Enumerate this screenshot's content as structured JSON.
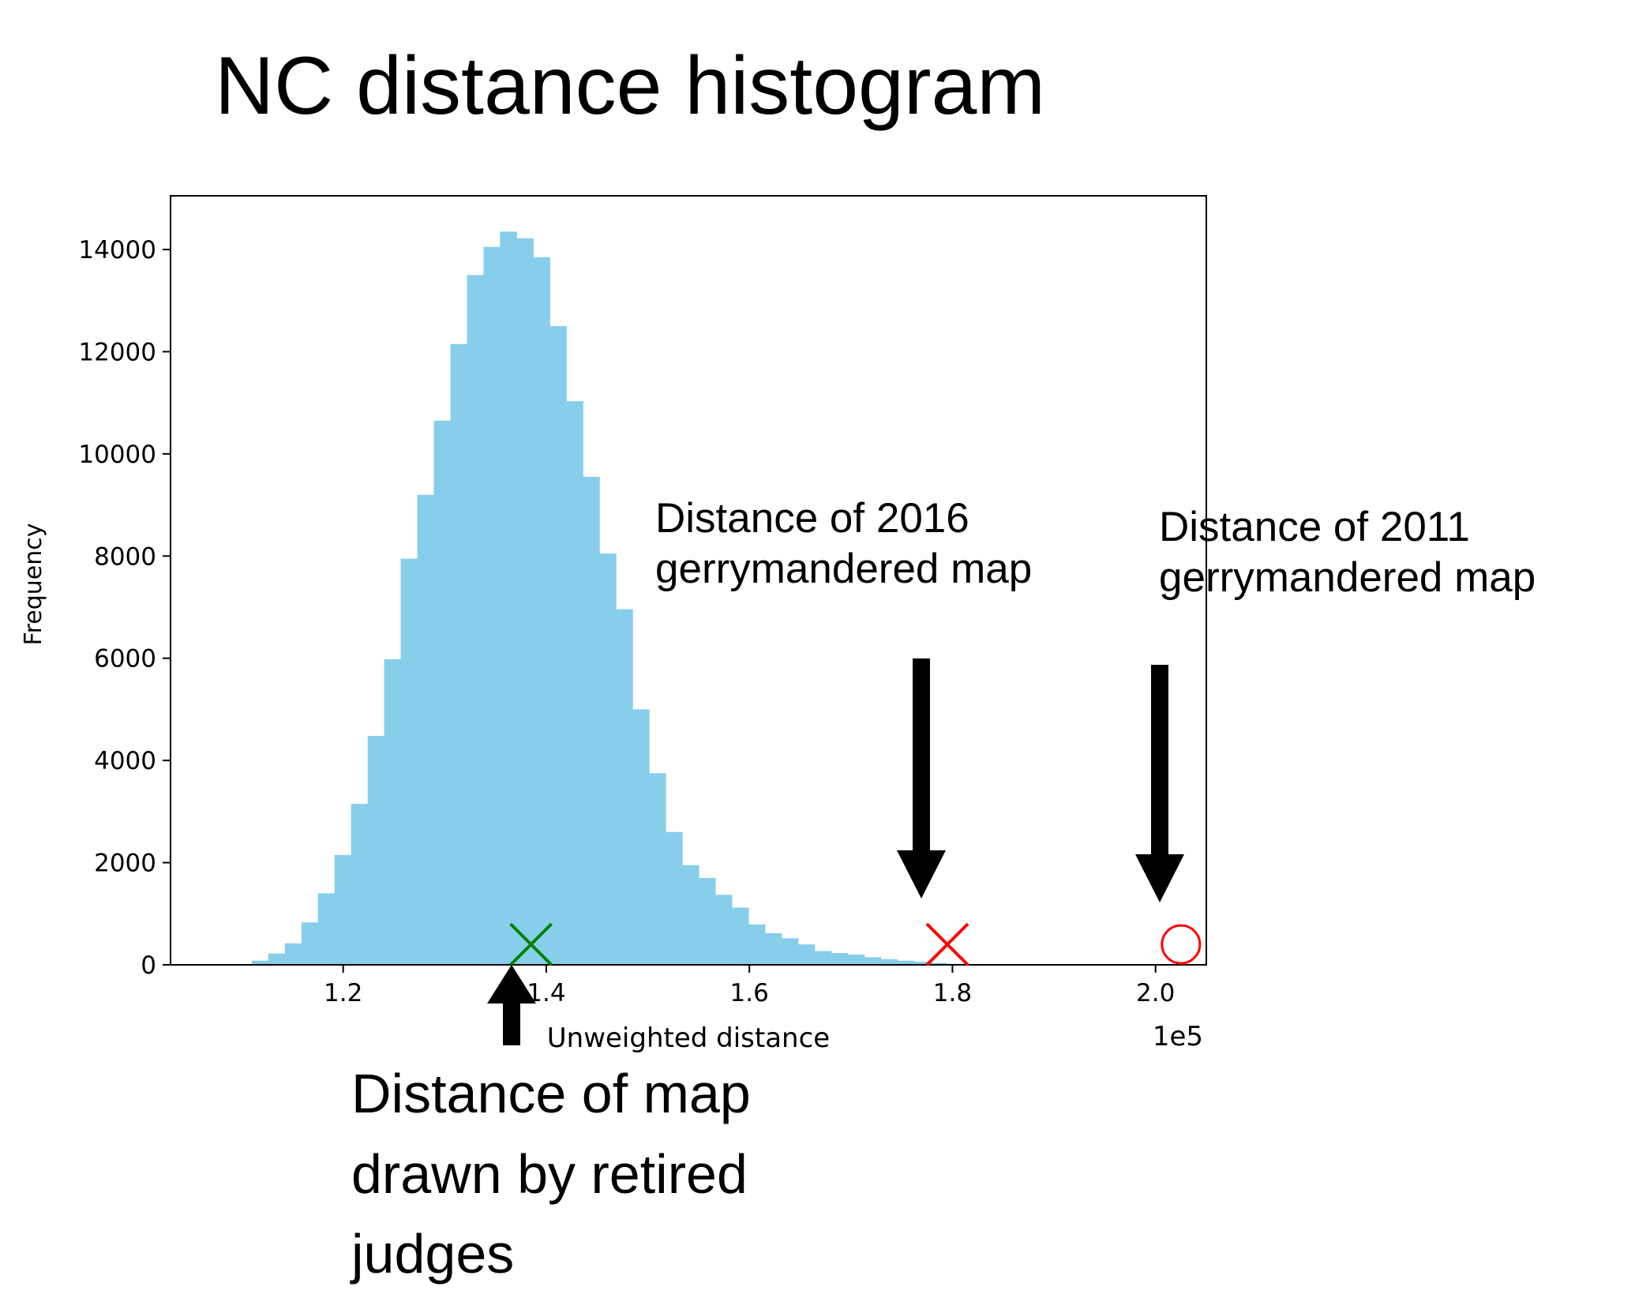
{
  "title": "NC distance histogram",
  "annotations": {
    "map_2016": [
      "Distance of 2016",
      "gerrymandered map"
    ],
    "map_2011": [
      "Distance of 2011",
      "gerrymandered map"
    ],
    "judges": [
      "Distance of map",
      "drawn by retired",
      "judges"
    ]
  },
  "chart_data": {
    "type": "bar",
    "subtype": "histogram",
    "xlabel": "Unweighted distance",
    "ylabel": "Frequency",
    "x_offset_label": "1e5",
    "xlim": [
      1.03,
      2.05
    ],
    "ylim": [
      0,
      15000
    ],
    "xticks": [
      1.2,
      1.4,
      1.6,
      1.8,
      2.0
    ],
    "xtick_labels": [
      "1.2",
      "1.4",
      "1.6",
      "1.8",
      "2.0"
    ],
    "yticks": [
      0,
      2000,
      4000,
      6000,
      8000,
      10000,
      12000,
      14000
    ],
    "ytick_labels": [
      "0",
      "2000",
      "4000",
      "6000",
      "8000",
      "10000",
      "12000",
      "14000"
    ],
    "bar_color": "#87ceeb",
    "bin_start": 1.11,
    "bin_width": 0.0163,
    "counts": [
      80,
      220,
      420,
      830,
      1400,
      2150,
      3150,
      4480,
      5980,
      7950,
      9200,
      10650,
      12150,
      13500,
      14050,
      14350,
      14220,
      13850,
      12500,
      11030,
      9550,
      8050,
      6960,
      5000,
      3750,
      2600,
      1950,
      1700,
      1370,
      1120,
      790,
      620,
      520,
      400,
      270,
      230,
      200,
      150,
      110,
      80,
      60,
      40,
      20,
      10
    ],
    "markers": [
      {
        "label": "map drawn by retired judges",
        "x": 1.385,
        "y": 400,
        "symbol": "x",
        "color": "#008000"
      },
      {
        "label": "2016 gerrymandered map",
        "x": 1.795,
        "y": 400,
        "symbol": "x",
        "color": "#ff0000"
      },
      {
        "label": "2011 gerrymandered map",
        "x": 2.025,
        "y": 400,
        "symbol": "circle",
        "color": "#ff0000"
      }
    ],
    "grid": false,
    "legend": "none"
  }
}
